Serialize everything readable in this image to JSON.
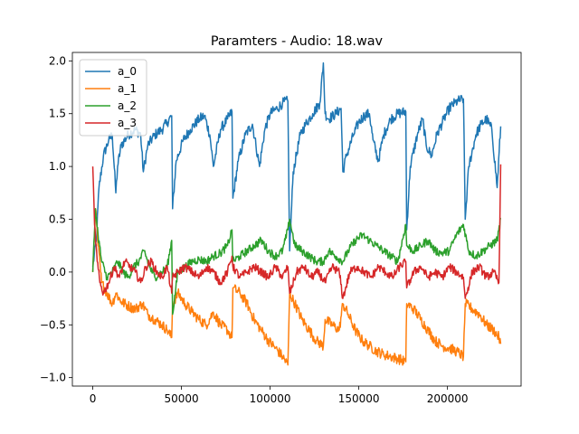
{
  "chart_data": {
    "type": "line",
    "title": "Paramters - Audio: 18.wav",
    "xlabel": "",
    "ylabel": "",
    "xlim": [
      -11500,
      241500
    ],
    "ylim": [
      -1.08,
      2.08
    ],
    "xticks": [
      0,
      50000,
      100000,
      150000,
      200000
    ],
    "xtick_labels": [
      "0",
      "50000",
      "100000",
      "150000",
      "200000"
    ],
    "yticks": [
      -1.0,
      -0.5,
      0.0,
      0.5,
      1.0,
      1.5,
      2.0
    ],
    "ytick_labels": [
      "−1.0",
      "−0.5",
      "0.0",
      "0.5",
      "1.0",
      "1.5",
      "2.0"
    ],
    "grid": false,
    "legend_position": "top-left",
    "series": [
      {
        "name": "a_0",
        "color": "#1f77b4",
        "x": [
          0,
          2000,
          3500,
          6000,
          9000,
          11000,
          13000,
          14000,
          16000,
          20000,
          24000,
          27000,
          28500,
          31000,
          35000,
          39000,
          42000,
          44500,
          45000,
          47000,
          51000,
          55000,
          60000,
          63000,
          66000,
          68000,
          72000,
          76000,
          78500,
          79000,
          82000,
          86000,
          90000,
          92000,
          94000,
          97000,
          100000,
          104000,
          107000,
          110000,
          111000,
          113000,
          117000,
          120000,
          124000,
          128000,
          130000,
          131000,
          133000,
          137000,
          140000,
          141000,
          143000,
          147000,
          150000,
          153000,
          156000,
          158000,
          161000,
          164000,
          168000,
          172000,
          176500,
          177000,
          179000,
          183000,
          186000,
          188000,
          191000,
          194000,
          198000,
          201000,
          204000,
          206000,
          209000,
          210000,
          212000,
          216000,
          219000,
          222000,
          225000,
          228000,
          230000
        ],
        "values": [
          0.05,
          0.3,
          0.8,
          1.1,
          1.25,
          1.3,
          0.75,
          1.0,
          1.2,
          1.3,
          1.35,
          1.3,
          0.95,
          1.2,
          1.3,
          1.35,
          1.42,
          1.48,
          0.6,
          1.05,
          1.25,
          1.35,
          1.45,
          1.48,
          1.3,
          1.0,
          1.35,
          1.45,
          1.52,
          0.7,
          1.05,
          1.3,
          1.4,
          1.2,
          1.0,
          1.35,
          1.5,
          1.55,
          1.6,
          1.62,
          0.2,
          0.95,
          1.3,
          1.4,
          1.5,
          1.6,
          1.98,
          1.5,
          1.45,
          1.5,
          1.55,
          0.95,
          1.1,
          1.3,
          1.42,
          1.48,
          1.5,
          1.25,
          1.05,
          1.3,
          1.45,
          1.5,
          1.52,
          0.4,
          1.0,
          1.3,
          1.45,
          1.2,
          1.1,
          1.3,
          1.45,
          1.55,
          1.6,
          1.62,
          1.64,
          0.5,
          1.0,
          1.3,
          1.4,
          1.45,
          1.35,
          0.8,
          1.38
        ]
      },
      {
        "name": "a_1",
        "color": "#ff7f0e",
        "x": [
          0,
          1500,
          3000,
          5000,
          8000,
          11000,
          13000,
          16000,
          20000,
          24000,
          28000,
          31000,
          35000,
          39000,
          42000,
          44500,
          45000,
          48000,
          52000,
          56000,
          60000,
          64000,
          68000,
          72000,
          76000,
          78500,
          79000,
          83000,
          87000,
          91000,
          95000,
          99000,
          103000,
          107000,
          110000,
          111000,
          114000,
          118000,
          122000,
          126000,
          130000,
          131000,
          135000,
          139000,
          141000,
          144000,
          148000,
          152000,
          156000,
          160000,
          164000,
          168000,
          172000,
          176500,
          177000,
          181000,
          185000,
          189000,
          193000,
          197000,
          201000,
          205000,
          209000,
          210000,
          214000,
          218000,
          222000,
          226000,
          229000,
          230000
        ],
        "values": [
          0.0,
          0.6,
          0.25,
          -0.1,
          -0.2,
          -0.3,
          -0.2,
          -0.28,
          -0.32,
          -0.35,
          -0.3,
          -0.4,
          -0.45,
          -0.5,
          -0.55,
          -0.62,
          -0.3,
          -0.2,
          -0.3,
          -0.38,
          -0.45,
          -0.5,
          -0.38,
          -0.5,
          -0.55,
          -0.62,
          -0.15,
          -0.2,
          -0.3,
          -0.45,
          -0.55,
          -0.65,
          -0.72,
          -0.8,
          -0.88,
          -0.2,
          -0.3,
          -0.45,
          -0.55,
          -0.65,
          -0.7,
          -0.45,
          -0.5,
          -0.55,
          -0.3,
          -0.4,
          -0.55,
          -0.65,
          -0.7,
          -0.75,
          -0.78,
          -0.8,
          -0.82,
          -0.85,
          -0.3,
          -0.35,
          -0.45,
          -0.55,
          -0.65,
          -0.7,
          -0.72,
          -0.75,
          -0.8,
          -0.3,
          -0.35,
          -0.4,
          -0.5,
          -0.55,
          -0.62,
          -0.68
        ]
      },
      {
        "name": "a_2",
        "color": "#2ca02c",
        "x": [
          0,
          1500,
          3000,
          5000,
          8000,
          11000,
          14000,
          17000,
          20000,
          23000,
          26000,
          29000,
          32000,
          35000,
          39000,
          42000,
          44500,
          45000,
          48000,
          52000,
          56000,
          60000,
          64000,
          68000,
          72000,
          76000,
          78500,
          79000,
          83000,
          87000,
          91000,
          95000,
          99000,
          103000,
          107000,
          110000,
          111000,
          114000,
          118000,
          122000,
          126000,
          130000,
          133000,
          137000,
          141000,
          144000,
          148000,
          152000,
          156000,
          160000,
          164000,
          168000,
          172000,
          176500,
          177000,
          181000,
          185000,
          189000,
          193000,
          197000,
          201000,
          205000,
          209000,
          212000,
          216000,
          220000,
          224000,
          228000,
          230000
        ],
        "values": [
          0.0,
          0.6,
          0.35,
          0.1,
          -0.05,
          0.0,
          0.1,
          0.0,
          -0.05,
          0.05,
          0.1,
          0.2,
          0.05,
          -0.05,
          0.0,
          0.05,
          0.3,
          -0.4,
          0.0,
          0.05,
          0.1,
          0.12,
          0.1,
          0.15,
          0.18,
          0.25,
          0.4,
          0.1,
          0.15,
          0.2,
          0.25,
          0.3,
          0.2,
          0.15,
          0.2,
          0.4,
          0.5,
          0.25,
          0.2,
          0.15,
          0.1,
          0.1,
          0.2,
          0.15,
          0.1,
          0.2,
          0.3,
          0.35,
          0.3,
          0.25,
          0.2,
          0.15,
          0.1,
          0.45,
          0.25,
          0.2,
          0.25,
          0.3,
          0.2,
          0.18,
          0.2,
          0.35,
          0.45,
          0.2,
          0.15,
          0.2,
          0.25,
          0.3,
          0.5
        ]
      },
      {
        "name": "a_3",
        "color": "#d62728",
        "x": [
          0,
          1000,
          2500,
          4000,
          6000,
          9000,
          12000,
          15000,
          18000,
          21000,
          24000,
          27000,
          30000,
          33000,
          36000,
          39000,
          42000,
          44500,
          45000,
          48000,
          52000,
          56000,
          60000,
          64000,
          68000,
          72000,
          76000,
          78500,
          79000,
          83000,
          87000,
          91000,
          95000,
          99000,
          103000,
          107000,
          110000,
          111000,
          115000,
          119000,
          123000,
          127000,
          131000,
          135000,
          139000,
          141000,
          145000,
          149000,
          153000,
          157000,
          161000,
          165000,
          169000,
          173000,
          176500,
          177000,
          181000,
          185000,
          189000,
          193000,
          197000,
          201000,
          205000,
          209000,
          210000,
          214000,
          218000,
          222000,
          226000,
          229000,
          230000
        ],
        "values": [
          1.0,
          0.45,
          0.1,
          -0.1,
          -0.2,
          -0.1,
          0.05,
          -0.05,
          0.1,
          0.05,
          0.0,
          -0.1,
          0.05,
          0.1,
          0.0,
          -0.05,
          0.05,
          -0.2,
          -0.05,
          0.0,
          0.05,
          0.0,
          -0.05,
          0.05,
          0.0,
          -0.1,
          0.0,
          0.15,
          0.05,
          -0.05,
          0.0,
          0.05,
          0.0,
          -0.05,
          0.05,
          -0.05,
          0.05,
          -0.2,
          0.0,
          0.05,
          -0.05,
          0.0,
          -0.1,
          0.05,
          0.0,
          -0.25,
          0.0,
          0.05,
          0.0,
          -0.05,
          0.05,
          0.0,
          -0.05,
          0.05,
          0.1,
          -0.15,
          0.0,
          0.05,
          -0.05,
          0.0,
          -0.05,
          0.05,
          0.0,
          -0.05,
          -0.25,
          0.0,
          0.05,
          -0.05,
          0.0,
          -0.1,
          1.02
        ]
      }
    ]
  }
}
